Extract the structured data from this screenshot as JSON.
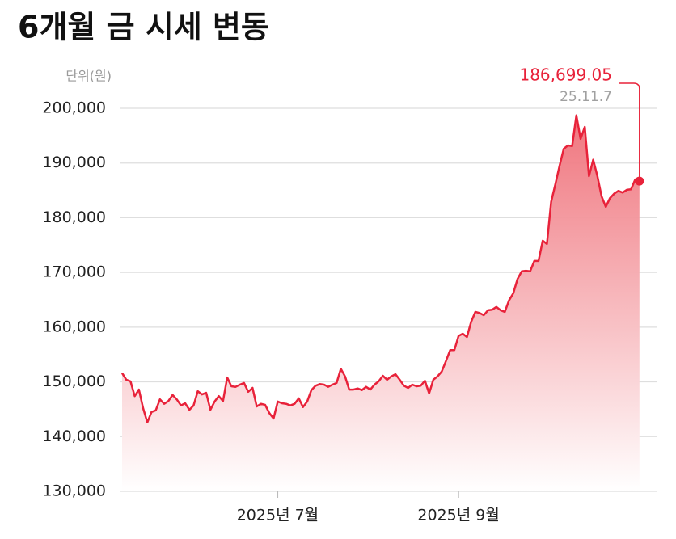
{
  "chart_data": {
    "type": "line",
    "title": "6개월 금 시세 변동",
    "unit_label": "단위(원)",
    "series": [
      {
        "color": "#e8223a",
        "values": [
          151600,
          150400,
          150100,
          147400,
          148600,
          145200,
          142600,
          144500,
          144800,
          146800,
          146000,
          146500,
          147600,
          146800,
          145700,
          146100,
          144900,
          145700,
          148300,
          147700,
          148000,
          144900,
          146400,
          147400,
          146500,
          150800,
          149200,
          149100,
          149500,
          149800,
          148200,
          148900,
          145500,
          146000,
          145800,
          144300,
          143300,
          146400,
          146100,
          146000,
          145700,
          146000,
          147000,
          145400,
          146400,
          148500,
          149300,
          149600,
          149500,
          149100,
          149500,
          149800,
          152400,
          151000,
          148600,
          148600,
          148800,
          148500,
          149100,
          148600,
          149500,
          150100,
          151100,
          150400,
          151000,
          151400,
          150400,
          149300,
          148900,
          149500,
          149200,
          149300,
          150200,
          147900,
          150400,
          151000,
          151900,
          153800,
          155800,
          155800,
          158400,
          158800,
          158200,
          161000,
          162800,
          162600,
          162200,
          163100,
          163200,
          163700,
          163100,
          162800,
          164900,
          166200,
          168800,
          170200,
          170300,
          170200,
          172100,
          172100,
          175800,
          175200,
          182900,
          186100,
          189500,
          192600,
          193200,
          193100,
          198700,
          194400,
          196600,
          187600,
          190600,
          187600,
          183900,
          182000,
          183600,
          184400,
          184900,
          184600,
          185100,
          185200,
          187000,
          186699.05
        ]
      }
    ],
    "annotation": {
      "value_label": "186,699.05",
      "date": "25.11.7"
    },
    "xlim": [
      0,
      124
    ],
    "xticks": [
      {
        "value": 37,
        "label": "2025년 7월"
      },
      {
        "value": 80,
        "label": "2025년 9월"
      }
    ],
    "ylim": [
      130000,
      200000
    ],
    "yticks": [
      {
        "value": 130000,
        "label": "130,000"
      },
      {
        "value": 140000,
        "label": "140,000"
      },
      {
        "value": 150000,
        "label": "150,000"
      },
      {
        "value": 160000,
        "label": "160,000"
      },
      {
        "value": 170000,
        "label": "170,000"
      },
      {
        "value": 180000,
        "label": "180,000"
      },
      {
        "value": 190000,
        "label": "190,000"
      },
      {
        "value": 200000,
        "label": "200,000"
      }
    ],
    "grid": true
  }
}
